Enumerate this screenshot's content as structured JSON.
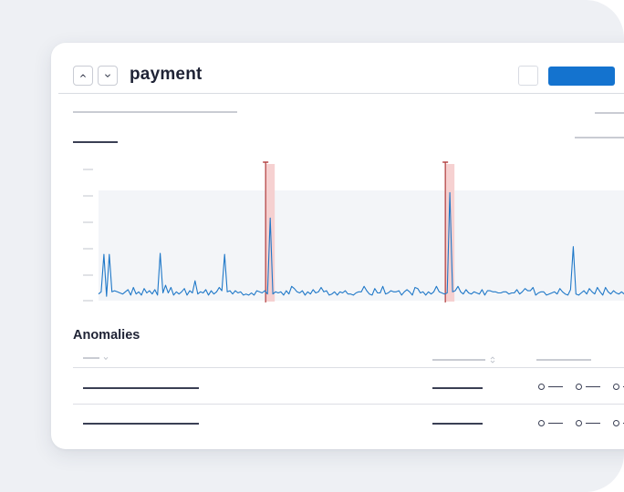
{
  "header": {
    "title": "payment"
  },
  "icons": {
    "prev": "chevron-up-icon",
    "next": "chevron-down-icon",
    "sort": "sort-icon"
  },
  "chart_data": {
    "type": "line",
    "title": "",
    "xlabel": "",
    "ylabel": "",
    "x_range": [
      0,
      200
    ],
    "ylim": [
      0,
      100
    ],
    "grid": false,
    "series": [
      {
        "values": [
          6,
          8,
          6,
          4,
          42,
          8,
          9,
          8,
          7,
          6,
          8,
          10,
          5,
          12,
          6,
          8,
          5,
          11,
          7,
          9,
          6,
          10,
          5,
          8,
          7,
          14,
          7,
          12,
          5,
          8,
          6,
          8,
          11,
          5,
          9,
          7,
          18,
          6,
          8,
          7,
          10,
          5,
          9,
          6,
          8,
          12,
          9,
          42,
          8,
          9,
          6,
          9,
          7,
          8,
          5,
          6,
          5,
          7,
          5,
          9,
          8,
          7,
          9,
          6,
          7,
          6,
          8,
          7,
          8,
          5,
          9,
          6,
          13,
          11,
          8,
          7,
          9,
          5,
          8,
          6,
          10,
          7,
          8,
          12,
          8,
          9,
          5,
          6,
          8,
          5,
          8,
          7,
          9,
          6,
          6,
          5,
          7,
          8,
          8,
          13,
          9,
          6,
          5,
          11,
          7,
          7,
          13,
          6,
          7,
          9,
          8,
          8,
          9,
          5,
          8,
          10,
          8,
          5,
          12,
          11,
          7,
          8,
          5,
          8,
          6,
          8,
          13,
          8,
          7,
          6,
          7,
          44,
          8,
          9,
          13,
          8,
          6,
          10,
          7,
          6,
          8,
          7,
          6,
          10,
          5,
          9,
          9,
          8,
          8,
          7,
          7,
          8,
          8,
          6,
          7,
          7,
          10,
          6,
          8,
          11,
          9,
          9,
          12,
          5,
          7,
          8,
          8,
          5,
          6,
          7,
          8,
          6,
          11,
          8,
          6,
          5,
          10,
          9,
          6,
          5,
          7,
          9,
          6,
          11,
          8,
          6,
          12,
          8,
          5,
          12,
          8,
          6,
          9,
          7,
          6,
          8,
          6,
          14,
          7,
          6,
          9
        ]
      }
    ],
    "anomalies": [
      {
        "x": 64,
        "y": 75
      },
      {
        "x": 131,
        "y": 98
      }
    ],
    "secondary_spikes": [
      {
        "x": 2,
        "y": 42
      },
      {
        "x": 23,
        "y": 43
      },
      {
        "x": 177,
        "y": 49
      }
    ],
    "colors": {
      "line": "#1f78c8",
      "anomaly_fill": "#f4c9c9",
      "anomaly_marker": "#b03a3a",
      "plot_background": "#f3f5f8",
      "tick": "#c2c6cd"
    }
  },
  "anomalies_section": {
    "title": "Anomalies",
    "rows": [
      {},
      {}
    ]
  }
}
